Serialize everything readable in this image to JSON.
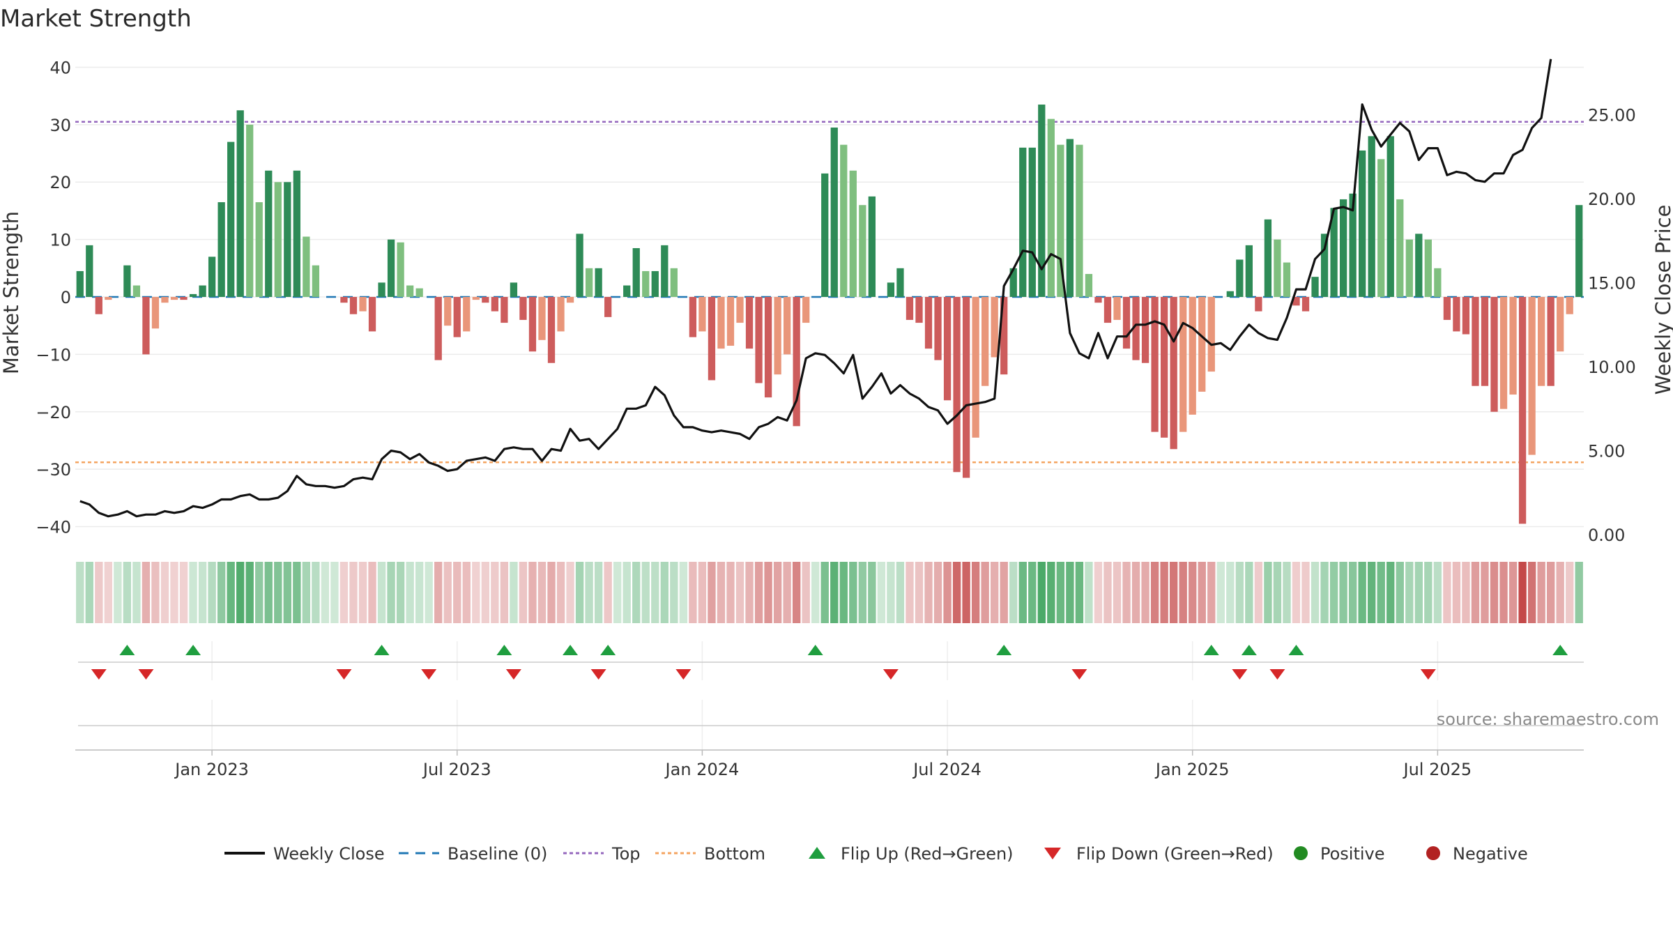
{
  "chart_data": {
    "type": "bar",
    "title": "Market Strength",
    "ylabel": "Market Strength",
    "y2label": "Weekly Close Price",
    "ylim": [
      -42,
      42
    ],
    "y2lim": [
      -0.2,
      28.5
    ],
    "yticks": [
      40,
      30,
      20,
      10,
      0,
      -10,
      -20,
      -30,
      -40
    ],
    "yticklabels": [
      "40",
      "30",
      "20",
      "10",
      "0",
      "−10",
      "−20",
      "−30",
      "−40"
    ],
    "y2ticks": [
      25,
      20,
      15,
      10,
      5,
      0
    ],
    "y2ticklabels": [
      "25.00",
      "20.00",
      "15.00",
      "10.00",
      "5.00",
      "0.00"
    ],
    "xtick_labels": [
      "Jan 2023",
      "Jul 2023",
      "Jan 2024",
      "Jul 2024",
      "Jan 2025",
      "Jul 2025"
    ],
    "xtick_weeks": [
      14.5,
      40.5,
      66.5,
      92.5,
      118.5,
      144.5
    ],
    "top_line": 30.5,
    "bottom_line": -28.8,
    "colors": {
      "pos_strong": "#2e8b57",
      "pos_weak": "#7fbf7f",
      "neg_strong": "#cd5c5c",
      "neg_weak": "#e9967a",
      "close": "#111111",
      "baseline": "#1f77b4",
      "top": "#9467bd",
      "bottom": "#f4a460",
      "flip_up": "#1f9e3f",
      "flip_down": "#d62728",
      "positive": "#228b22",
      "negative": "#b22222"
    },
    "strength": [
      4.5,
      9,
      -3,
      -0.5,
      0,
      5.5,
      2,
      -10,
      -5.5,
      -1,
      -0.5,
      -0.5,
      0.5,
      2,
      7,
      16.5,
      27,
      32.5,
      30,
      16.5,
      22,
      20,
      20,
      22,
      10.5,
      5.5,
      0,
      0,
      -1,
      -3,
      -2.5,
      -6,
      2.5,
      10,
      9.5,
      2,
      1.5,
      0,
      -11,
      -5,
      -7,
      -6,
      -0.5,
      -1,
      -2.5,
      -4.5,
      2.5,
      -4,
      -9.5,
      -7.5,
      -11.5,
      -6,
      -1,
      11,
      5,
      5,
      -3.5,
      0,
      2,
      8.5,
      4.5,
      4.5,
      9,
      5,
      0,
      -7,
      -6,
      -14.5,
      -9,
      -8.5,
      -4.5,
      -9,
      -15,
      -17.5,
      -13.5,
      -10,
      -22.5,
      -4.5,
      0,
      21.5,
      29.5,
      26.5,
      22,
      16,
      17.5,
      0,
      2.5,
      5,
      -4,
      -4.5,
      -9,
      -11,
      -18,
      -30.5,
      -31.5,
      -24.5,
      -15.5,
      -10.5,
      -13.5,
      5,
      26,
      26,
      33.5,
      31,
      26.5,
      27.5,
      26.5,
      4,
      -1,
      -4.5,
      -4,
      -9,
      -11,
      -11.5,
      -23.5,
      -24.5,
      -26.5,
      -23.5,
      -20.5,
      -16.5,
      -13,
      0,
      1,
      6.5,
      9,
      -2.5,
      13.5,
      10,
      6,
      -1.5,
      -2.5,
      3.5,
      11,
      15.5,
      17,
      18,
      25.5,
      28,
      24,
      28,
      17,
      10,
      11,
      10,
      5,
      -4,
      -6,
      -6.5,
      -15.5,
      -15.5,
      -20,
      -19.5,
      -17,
      -39.5,
      -27.5,
      -15.5,
      -15.5,
      -9.5,
      -3,
      16
    ],
    "close": [
      2.0,
      1.8,
      1.3,
      1.1,
      1.2,
      1.4,
      1.1,
      1.2,
      1.2,
      1.4,
      1.3,
      1.4,
      1.7,
      1.6,
      1.8,
      2.1,
      2.1,
      2.3,
      2.4,
      2.1,
      2.1,
      2.2,
      2.6,
      3.5,
      3.0,
      2.9,
      2.9,
      2.8,
      2.9,
      3.3,
      3.4,
      3.3,
      4.5,
      5.0,
      4.9,
      4.5,
      4.8,
      4.3,
      4.1,
      3.8,
      3.9,
      4.4,
      4.5,
      4.6,
      4.4,
      5.1,
      5.2,
      5.1,
      5.1,
      4.4,
      5.1,
      5.0,
      6.3,
      5.6,
      5.7,
      5.1,
      5.7,
      6.3,
      7.5,
      7.5,
      7.7,
      8.8,
      8.3,
      7.1,
      6.4,
      6.4,
      6.2,
      6.1,
      6.2,
      6.1,
      6.0,
      5.7,
      6.4,
      6.6,
      7.0,
      6.8,
      8.0,
      10.5,
      10.8,
      10.7,
      10.2,
      9.6,
      10.7,
      8.1,
      8.8,
      9.6,
      8.4,
      8.9,
      8.4,
      8.1,
      7.6,
      7.4,
      6.6,
      7.1,
      7.7,
      7.8,
      7.9,
      8.1,
      14.8,
      15.8,
      16.9,
      16.8,
      15.8,
      16.7,
      16.4,
      12.0,
      10.8,
      10.5,
      12.0,
      10.5,
      11.8,
      11.8,
      12.5,
      12.5,
      12.7,
      12.5,
      11.5,
      12.6,
      12.3,
      11.8,
      11.3,
      11.4,
      11.0,
      11.8,
      12.5,
      12.0,
      11.7,
      11.6,
      12.9,
      14.6,
      14.6,
      16.4,
      17.0,
      19.4,
      19.5,
      19.3,
      25.6,
      24.1,
      23.1,
      23.8,
      24.5,
      24.0,
      22.3,
      23.0,
      23.0,
      21.4,
      21.6,
      21.5,
      21.1,
      21.0,
      21.5,
      21.5,
      22.6,
      22.9,
      24.2,
      24.8,
      28.3
    ],
    "flip_up_weeks": [
      5,
      12,
      32,
      45,
      52,
      56,
      78,
      98,
      120,
      124,
      129,
      157
    ],
    "flip_down_weeks": [
      2,
      7,
      28,
      37,
      46,
      55,
      64,
      86,
      106,
      123,
      127,
      143
    ],
    "xlabel": "",
    "legend": [
      "Weekly Close",
      "Baseline (0)",
      "Top",
      "Bottom",
      "Flip Up (Red→Green)",
      "Flip Down (Green→Red)",
      "Positive",
      "Negative"
    ],
    "legend_position": "bottom-center",
    "source": "source: sharemaestro.com"
  }
}
